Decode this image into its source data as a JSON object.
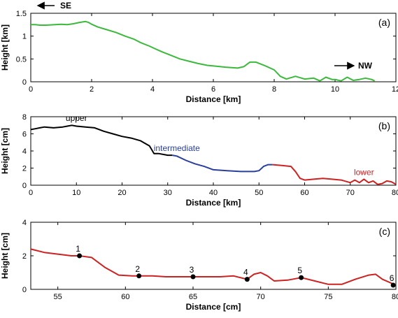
{
  "chart_data": [
    {
      "type": "line",
      "panel_tag": "(a)",
      "xlabel": "Distance [km]",
      "ylabel": "Height [km]",
      "xlim": [
        0,
        12
      ],
      "ylim": [
        0,
        1.5
      ],
      "xticks": [
        0,
        2,
        4,
        6,
        8,
        10,
        12
      ],
      "yticks": [
        0,
        0.5,
        1,
        1.5
      ],
      "ytick_labels": [
        "0",
        "0.5",
        "1",
        "1.5"
      ],
      "grid": false,
      "series": [
        {
          "color": "#3cb93c",
          "x": [
            0,
            0.15,
            0.3,
            0.5,
            0.8,
            1.0,
            1.2,
            1.4,
            1.6,
            1.8,
            1.9,
            2.0,
            2.2,
            2.5,
            2.8,
            3.1,
            3.4,
            3.6,
            3.9,
            4.1,
            4.3,
            4.6,
            4.9,
            5.2,
            5.5,
            5.8,
            6.1,
            6.4,
            6.8,
            7.0,
            7.2,
            7.4,
            7.7,
            8.0,
            8.2,
            8.4,
            8.7,
            9.0,
            9.3,
            9.5,
            9.7,
            9.9,
            10.0,
            10.2,
            10.4,
            10.6,
            10.8,
            11.0,
            11.2,
            11.3
          ],
          "y": [
            1.25,
            1.25,
            1.24,
            1.24,
            1.25,
            1.26,
            1.25,
            1.27,
            1.3,
            1.32,
            1.3,
            1.26,
            1.2,
            1.14,
            1.08,
            1.0,
            0.93,
            0.86,
            0.78,
            0.72,
            0.66,
            0.58,
            0.5,
            0.45,
            0.4,
            0.36,
            0.34,
            0.32,
            0.3,
            0.33,
            0.43,
            0.43,
            0.35,
            0.26,
            0.12,
            0.06,
            0.12,
            0.06,
            0.08,
            0.02,
            0.1,
            0.05,
            0.05,
            0.02,
            0.1,
            0.03,
            0.05,
            0.08,
            0.05,
            0.02
          ]
        }
      ],
      "annotations": [
        {
          "text": "SE",
          "arrow": "left"
        },
        {
          "text": "NW",
          "arrow": "right"
        }
      ]
    },
    {
      "type": "line",
      "panel_tag": "(b)",
      "xlabel": "Distance [km]",
      "ylabel": "Height [cm]",
      "xlim": [
        0,
        80
      ],
      "ylim": [
        0,
        8
      ],
      "xticks": [
        0,
        10,
        20,
        30,
        40,
        50,
        60,
        70,
        80
      ],
      "yticks": [
        0,
        2,
        4,
        6,
        8
      ],
      "grid": false,
      "series": [
        {
          "name": "upper",
          "color": "#000000",
          "x": [
            0,
            1,
            2,
            3,
            5,
            7,
            8,
            9,
            10,
            12,
            14,
            16,
            18,
            20,
            22,
            24,
            25,
            26,
            27,
            28,
            30,
            31
          ],
          "y": [
            6.5,
            6.6,
            6.7,
            6.8,
            6.7,
            6.8,
            6.9,
            7.0,
            6.9,
            6.8,
            6.7,
            6.3,
            6.0,
            5.7,
            5.5,
            5.2,
            4.9,
            4.6,
            3.7,
            3.7,
            3.5,
            3.5
          ]
        },
        {
          "name": "intermediate",
          "color": "#2a3f9a",
          "x": [
            31,
            32,
            34,
            36,
            38,
            40,
            43,
            46,
            49,
            50,
            51,
            52,
            53
          ],
          "y": [
            3.5,
            3.4,
            2.9,
            2.5,
            2.2,
            1.8,
            1.7,
            1.6,
            1.6,
            1.7,
            2.2,
            2.4,
            2.4
          ]
        },
        {
          "name": "lower",
          "color": "#cc2222",
          "x": [
            53,
            55,
            57,
            58,
            59,
            60,
            62,
            64,
            66,
            68,
            70,
            71,
            72,
            73,
            74,
            75,
            76,
            77,
            78,
            79,
            80
          ],
          "y": [
            2.4,
            2.3,
            2.2,
            1.6,
            0.8,
            0.6,
            0.7,
            0.8,
            0.7,
            0.6,
            0.3,
            0.6,
            0.3,
            0.7,
            0.3,
            0.5,
            0.1,
            0.2,
            0.5,
            0.4,
            0.1
          ]
        }
      ]
    },
    {
      "type": "line",
      "panel_tag": "(c)",
      "xlabel": "Distance [cm]",
      "ylabel": "Height [cm]",
      "xlim": [
        53,
        80
      ],
      "ylim": [
        0,
        4
      ],
      "xticks": [
        55,
        60,
        65,
        70,
        75,
        80
      ],
      "yticks": [
        0,
        2,
        4
      ],
      "grid": false,
      "series": [
        {
          "color": "#cc2222",
          "x": [
            53,
            54,
            55,
            56,
            56.6,
            57.5,
            58.5,
            59.5,
            60.5,
            61,
            62,
            63,
            64,
            65,
            66,
            67,
            68,
            69,
            69.5,
            70,
            70.5,
            71,
            72,
            73,
            74,
            75,
            76,
            77,
            78,
            78.5,
            79,
            80
          ],
          "y": [
            2.4,
            2.2,
            2.1,
            2.0,
            2.0,
            1.9,
            1.3,
            0.85,
            0.8,
            0.8,
            0.8,
            0.75,
            0.75,
            0.75,
            0.75,
            0.75,
            0.8,
            0.6,
            0.9,
            1.0,
            0.8,
            0.5,
            0.55,
            0.7,
            0.5,
            0.3,
            0.3,
            0.6,
            0.85,
            0.9,
            0.6,
            0.25
          ]
        }
      ],
      "points": [
        {
          "label": "1",
          "x": 56.6,
          "y": 2.0
        },
        {
          "label": "2",
          "x": 61,
          "y": 0.8
        },
        {
          "label": "3",
          "x": 65,
          "y": 0.75
        },
        {
          "label": "4",
          "x": 69,
          "y": 0.6
        },
        {
          "label": "5",
          "x": 73,
          "y": 0.7
        },
        {
          "label": "6",
          "x": 79.8,
          "y": 0.25
        }
      ]
    }
  ]
}
